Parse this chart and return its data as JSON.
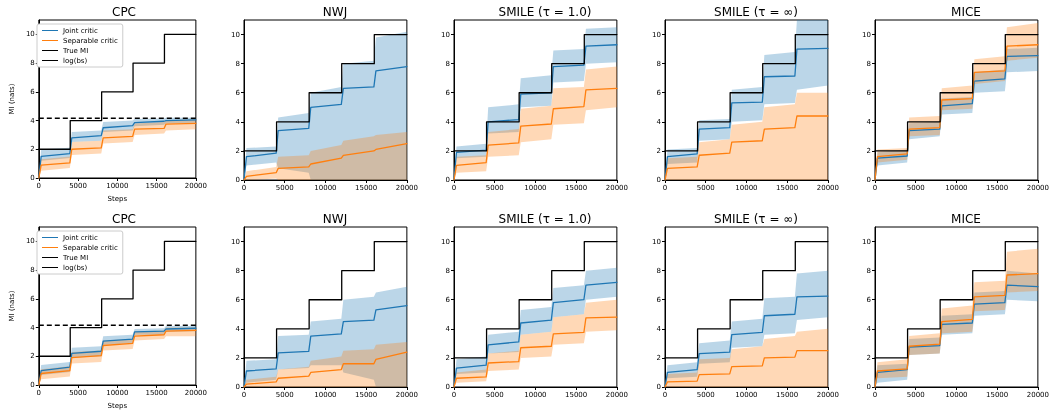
{
  "chart_data": [
    {
      "type": "line",
      "title": "CPC",
      "xlabel": "Steps",
      "ylabel": "MI (nats)",
      "legend": "top left",
      "xlim": [
        0,
        20000
      ],
      "xticks": [
        0,
        5000,
        10000,
        15000,
        20000
      ],
      "ylim": [
        0,
        11
      ],
      "yticks": [
        0,
        2,
        4,
        6,
        8,
        10
      ],
      "x": [
        0,
        300,
        3950,
        4200,
        7950,
        8200,
        11950,
        12200,
        15950,
        16200,
        20000
      ],
      "series": [
        {
          "name": "Joint critic",
          "color": "#1f77b4",
          "values": [
            0,
            1.5,
            1.7,
            2.8,
            2.95,
            3.5,
            3.65,
            3.85,
            3.95,
            4.0,
            4.05
          ],
          "lower": [
            0,
            1.2,
            1.4,
            2.5,
            2.6,
            3.2,
            3.3,
            3.6,
            3.7,
            3.8,
            3.85
          ],
          "upper": [
            0,
            2.0,
            2.1,
            3.2,
            3.3,
            3.9,
            4.0,
            4.1,
            4.15,
            4.2,
            4.2
          ]
        },
        {
          "name": "Separable critic",
          "color": "#ff7f0e",
          "values": [
            0,
            0.9,
            1.05,
            2.0,
            2.1,
            2.8,
            2.9,
            3.4,
            3.45,
            3.75,
            3.8
          ],
          "lower": [
            0,
            0.5,
            0.7,
            1.6,
            1.7,
            2.4,
            2.5,
            3.0,
            3.1,
            3.3,
            3.4
          ],
          "upper": [
            0,
            1.3,
            1.5,
            2.5,
            2.6,
            3.3,
            3.4,
            3.8,
            3.9,
            4.0,
            4.1
          ]
        },
        {
          "name": "True MI",
          "type": "step",
          "color": "#000000",
          "x": [
            0,
            4000,
            8000,
            12000,
            16000,
            20000
          ],
          "values": [
            2,
            4,
            6,
            8,
            10,
            10
          ]
        }
      ],
      "ref_lines": [
        {
          "axis": "y",
          "value": 4.16,
          "label": "log(bs)",
          "color": "#000000",
          "line_style": "dashed"
        }
      ]
    },
    {
      "type": "line",
      "title": "NWJ",
      "xlim": [
        0,
        20000
      ],
      "xticks": [
        0,
        5000,
        10000,
        15000,
        20000
      ],
      "ylim": [
        0,
        11
      ],
      "yticks": [
        0,
        2,
        4,
        6,
        8,
        10
      ],
      "x": [
        0,
        300,
        3950,
        4200,
        7950,
        8200,
        11950,
        12200,
        15950,
        16200,
        20000
      ],
      "series": [
        {
          "color": "#1f77b4",
          "values": [
            0,
            1.6,
            1.85,
            3.4,
            3.55,
            5.0,
            5.2,
            6.3,
            6.4,
            7.5,
            7.8
          ],
          "lower": [
            0,
            1.0,
            1.2,
            0.8,
            0.5,
            0,
            0,
            0,
            0,
            0,
            0
          ],
          "upper": [
            0,
            2.2,
            2.3,
            4.3,
            4.6,
            6.0,
            6.4,
            8.0,
            8.2,
            9.8,
            10.2
          ]
        },
        {
          "color": "#ff7f0e",
          "values": [
            0,
            0.25,
            0.5,
            0.8,
            0.9,
            1.1,
            1.5,
            1.7,
            2.0,
            2.1,
            2.5
          ],
          "lower": [
            0,
            0,
            0.1,
            0,
            0,
            0,
            0,
            0,
            0,
            0,
            0
          ],
          "upper": [
            0,
            0.6,
            0.9,
            1.6,
            1.7,
            2.0,
            2.4,
            2.7,
            3.0,
            3.1,
            3.3
          ]
        },
        {
          "type": "step",
          "color": "#000000",
          "x": [
            0,
            4000,
            8000,
            12000,
            16000,
            20000
          ],
          "values": [
            2,
            4,
            6,
            8,
            10,
            10
          ]
        }
      ]
    },
    {
      "type": "line",
      "title": "SMILE (τ = 1.0)",
      "xlim": [
        0,
        20000
      ],
      "xticks": [
        0,
        5000,
        10000,
        15000,
        20000
      ],
      "ylim": [
        0,
        11
      ],
      "yticks": [
        0,
        2,
        4,
        6,
        8,
        10
      ],
      "x": [
        0,
        300,
        3950,
        4200,
        7950,
        8200,
        11950,
        12200,
        15950,
        16200,
        20000
      ],
      "series": [
        {
          "color": "#1f77b4",
          "values": [
            0,
            1.9,
            2.05,
            4.0,
            4.15,
            5.9,
            6.0,
            7.8,
            7.9,
            9.2,
            9.3
          ],
          "lower": [
            0,
            1.5,
            1.6,
            3.2,
            3.3,
            5.0,
            5.1,
            6.7,
            6.8,
            8.0,
            8.1
          ],
          "upper": [
            0,
            2.3,
            2.5,
            5.0,
            5.2,
            7.0,
            7.2,
            8.9,
            9.0,
            10.4,
            10.5
          ]
        },
        {
          "color": "#ff7f0e",
          "values": [
            0,
            1.0,
            1.2,
            2.4,
            2.55,
            3.7,
            3.85,
            4.9,
            5.05,
            6.2,
            6.3
          ],
          "lower": [
            0,
            0.5,
            0.6,
            1.6,
            1.7,
            2.6,
            2.8,
            3.8,
            3.9,
            4.8,
            5.0
          ],
          "upper": [
            0,
            1.6,
            1.7,
            3.3,
            3.5,
            4.9,
            5.1,
            6.3,
            6.4,
            7.6,
            7.8
          ]
        },
        {
          "type": "step",
          "color": "#000000",
          "x": [
            0,
            4000,
            8000,
            12000,
            16000,
            20000
          ],
          "values": [
            2,
            4,
            6,
            8,
            10,
            10
          ]
        }
      ]
    },
    {
      "type": "line",
      "title": "SMILE (τ = ∞)",
      "xlim": [
        0,
        20000
      ],
      "xticks": [
        0,
        5000,
        10000,
        15000,
        20000
      ],
      "ylim": [
        0,
        11
      ],
      "yticks": [
        0,
        2,
        4,
        6,
        8,
        10
      ],
      "x": [
        0,
        300,
        3950,
        4200,
        7950,
        8200,
        11950,
        12200,
        15950,
        16200,
        20000
      ],
      "series": [
        {
          "color": "#1f77b4",
          "values": [
            0,
            1.6,
            1.8,
            3.5,
            3.6,
            5.3,
            5.35,
            7.1,
            7.15,
            9.0,
            9.05
          ],
          "lower": [
            0,
            1.1,
            1.2,
            2.7,
            2.8,
            4.0,
            4.1,
            5.2,
            5.3,
            6.2,
            6.5
          ],
          "upper": [
            0,
            2.1,
            2.2,
            4.1,
            4.2,
            6.2,
            6.4,
            8.6,
            8.8,
            11,
            11
          ]
        },
        {
          "color": "#ff7f0e",
          "values": [
            0,
            0.8,
            0.9,
            1.7,
            1.85,
            2.6,
            2.7,
            3.5,
            3.6,
            4.4,
            4.4
          ],
          "lower": [
            0,
            0,
            0,
            0,
            0,
            0,
            0,
            0,
            0,
            0,
            0
          ],
          "upper": [
            0,
            1.5,
            1.6,
            2.6,
            2.8,
            3.8,
            4.0,
            5.0,
            5.2,
            6.0,
            6.0
          ]
        },
        {
          "type": "step",
          "color": "#000000",
          "x": [
            0,
            4000,
            8000,
            12000,
            16000,
            20000
          ],
          "values": [
            2,
            4,
            6,
            8,
            10,
            10
          ]
        }
      ]
    },
    {
      "type": "line",
      "title": "MICE",
      "xlim": [
        0,
        20000
      ],
      "xticks": [
        0,
        5000,
        10000,
        15000,
        20000
      ],
      "ylim": [
        0,
        11
      ],
      "yticks": [
        0,
        2,
        4,
        6,
        8,
        10
      ],
      "x": [
        0,
        300,
        3950,
        4200,
        7950,
        8200,
        11950,
        12200,
        15950,
        16200,
        20000
      ],
      "series": [
        {
          "color": "#1f77b4",
          "values": [
            0,
            1.5,
            1.65,
            3.4,
            3.5,
            5.1,
            5.25,
            6.8,
            6.95,
            8.5,
            8.55
          ],
          "lower": [
            0,
            1.0,
            1.2,
            2.8,
            3.0,
            4.5,
            4.6,
            6.0,
            6.1,
            7.4,
            7.5
          ],
          "upper": [
            0,
            1.9,
            2.1,
            3.9,
            4.0,
            5.6,
            5.7,
            7.4,
            7.6,
            9.0,
            9.1
          ]
        },
        {
          "color": "#ff7f0e",
          "values": [
            0,
            1.6,
            1.8,
            3.5,
            3.6,
            5.5,
            5.6,
            7.4,
            7.5,
            9.2,
            9.3
          ],
          "lower": [
            0,
            1.2,
            1.4,
            3.0,
            3.1,
            4.8,
            4.9,
            6.6,
            6.8,
            8.2,
            8.4
          ],
          "upper": [
            0,
            2.1,
            2.2,
            4.3,
            4.4,
            6.3,
            6.5,
            8.3,
            8.5,
            10.5,
            10.8
          ]
        },
        {
          "type": "step",
          "color": "#000000",
          "x": [
            0,
            4000,
            8000,
            12000,
            16000,
            20000
          ],
          "values": [
            2,
            4,
            6,
            8,
            10,
            10
          ]
        }
      ]
    },
    {
      "type": "line",
      "title": "CPC",
      "xlabel": "Steps",
      "ylabel": "MI (nats)",
      "legend": "top left",
      "xlim": [
        0,
        20000
      ],
      "xticks": [
        0,
        5000,
        10000,
        15000,
        20000
      ],
      "ylim": [
        0,
        11
      ],
      "yticks": [
        0,
        2,
        4,
        6,
        8,
        10
      ],
      "x": [
        0,
        300,
        3950,
        4200,
        7950,
        8200,
        11950,
        12200,
        15950,
        16200,
        20000
      ],
      "series": [
        {
          "name": "Joint critic",
          "color": "#1f77b4",
          "values": [
            0,
            1.0,
            1.25,
            2.2,
            2.35,
            3.05,
            3.2,
            3.7,
            3.75,
            3.9,
            3.95
          ],
          "lower": [
            0,
            0.7,
            0.9,
            1.9,
            2.0,
            2.8,
            2.9,
            3.5,
            3.5,
            3.7,
            3.75
          ],
          "upper": [
            0,
            1.4,
            1.6,
            2.6,
            2.7,
            3.4,
            3.5,
            3.9,
            3.95,
            4.1,
            4.1
          ]
        },
        {
          "name": "Separable critic",
          "color": "#ff7f0e",
          "values": [
            0,
            0.8,
            1.0,
            1.9,
            2.05,
            2.75,
            2.9,
            3.4,
            3.5,
            3.75,
            3.8
          ],
          "lower": [
            0,
            0.4,
            0.6,
            1.5,
            1.6,
            2.4,
            2.5,
            3.1,
            3.2,
            3.4,
            3.4
          ],
          "upper": [
            0,
            1.1,
            1.3,
            2.3,
            2.4,
            3.1,
            3.2,
            3.7,
            3.8,
            4.0,
            4.0
          ]
        },
        {
          "name": "True MI",
          "type": "step",
          "color": "#000000",
          "x": [
            0,
            4000,
            8000,
            12000,
            16000,
            20000
          ],
          "values": [
            2,
            4,
            6,
            8,
            10,
            10
          ]
        }
      ],
      "ref_lines": [
        {
          "axis": "y",
          "value": 4.16,
          "label": "log(bs)",
          "color": "#000000",
          "line_style": "dashed"
        }
      ]
    },
    {
      "type": "line",
      "title": "NWJ",
      "xlim": [
        0,
        20000
      ],
      "xticks": [
        0,
        5000,
        10000,
        15000,
        20000
      ],
      "ylim": [
        0,
        11
      ],
      "yticks": [
        0,
        2,
        4,
        6,
        8,
        10
      ],
      "x": [
        0,
        300,
        3950,
        4200,
        7950,
        8200,
        11950,
        12200,
        15950,
        16200,
        20000
      ],
      "series": [
        {
          "color": "#1f77b4",
          "values": [
            0,
            1.1,
            1.25,
            2.35,
            2.45,
            3.5,
            3.65,
            4.5,
            4.6,
            5.3,
            5.6
          ],
          "lower": [
            0,
            0.3,
            0.5,
            1.2,
            1.3,
            1.5,
            1.5,
            1.0,
            0.5,
            0,
            0
          ],
          "upper": [
            0,
            1.8,
            1.9,
            3.5,
            3.6,
            4.5,
            4.7,
            6.0,
            6.2,
            6.5,
            6.9
          ]
        },
        {
          "color": "#ff7f0e",
          "values": [
            0,
            0.2,
            0.35,
            0.6,
            0.75,
            1.0,
            1.2,
            1.6,
            1.6,
            1.9,
            2.4
          ],
          "lower": [
            0,
            0,
            0,
            0,
            0,
            0,
            0,
            0,
            0,
            0,
            0
          ],
          "upper": [
            0,
            0.5,
            0.7,
            1.2,
            1.4,
            1.8,
            2.1,
            2.5,
            2.6,
            2.9,
            3.1
          ]
        },
        {
          "type": "step",
          "color": "#000000",
          "x": [
            0,
            4000,
            8000,
            12000,
            16000,
            20000
          ],
          "values": [
            2,
            4,
            6,
            8,
            10,
            10
          ]
        }
      ]
    },
    {
      "type": "line",
      "title": "SMILE (τ = 1.0)",
      "xlim": [
        0,
        20000
      ],
      "xticks": [
        0,
        5000,
        10000,
        15000,
        20000
      ],
      "ylim": [
        0,
        11
      ],
      "yticks": [
        0,
        2,
        4,
        6,
        8,
        10
      ],
      "x": [
        0,
        300,
        3950,
        4200,
        7950,
        8200,
        11950,
        12200,
        15950,
        16200,
        20000
      ],
      "series": [
        {
          "color": "#1f77b4",
          "values": [
            0,
            1.3,
            1.5,
            2.9,
            3.1,
            4.4,
            4.6,
            5.8,
            6.0,
            7.0,
            7.2
          ],
          "lower": [
            0,
            0.9,
            1.0,
            2.3,
            2.4,
            3.6,
            3.8,
            4.8,
            5.0,
            6.0,
            6.2
          ],
          "upper": [
            0,
            1.9,
            2.1,
            3.6,
            3.8,
            5.3,
            5.5,
            6.8,
            7.0,
            8.0,
            8.2
          ]
        },
        {
          "color": "#ff7f0e",
          "values": [
            0,
            0.6,
            0.7,
            1.65,
            1.75,
            2.7,
            2.8,
            3.65,
            3.75,
            4.75,
            4.8
          ],
          "lower": [
            0,
            0.3,
            0.4,
            1.1,
            1.2,
            2.0,
            2.1,
            2.9,
            3.0,
            3.8,
            3.9
          ],
          "upper": [
            0,
            1.0,
            1.2,
            2.3,
            2.5,
            3.6,
            3.8,
            4.8,
            5.0,
            5.8,
            6.0
          ]
        },
        {
          "type": "step",
          "color": "#000000",
          "x": [
            0,
            4000,
            8000,
            12000,
            16000,
            20000
          ],
          "values": [
            2,
            4,
            6,
            8,
            10,
            10
          ]
        }
      ]
    },
    {
      "type": "line",
      "title": "SMILE (τ = ∞)",
      "xlim": [
        0,
        20000
      ],
      "xticks": [
        0,
        5000,
        10000,
        15000,
        20000
      ],
      "ylim": [
        0,
        11
      ],
      "yticks": [
        0,
        2,
        4,
        6,
        8,
        10
      ],
      "x": [
        0,
        300,
        3950,
        4200,
        7950,
        8200,
        11950,
        12200,
        15950,
        16200,
        20000
      ],
      "series": [
        {
          "color": "#1f77b4",
          "values": [
            0,
            1.0,
            1.2,
            2.3,
            2.4,
            3.6,
            3.75,
            4.9,
            5.0,
            6.2,
            6.25
          ],
          "lower": [
            0,
            0.6,
            0.7,
            1.6,
            1.7,
            2.7,
            2.8,
            3.6,
            3.7,
            4.6,
            4.8
          ],
          "upper": [
            0,
            1.5,
            1.7,
            3.0,
            3.2,
            4.5,
            4.7,
            6.1,
            6.2,
            7.8,
            8.0
          ]
        },
        {
          "color": "#ff7f0e",
          "values": [
            0,
            0.35,
            0.4,
            0.85,
            0.9,
            1.4,
            1.45,
            2.0,
            2.05,
            2.5,
            2.5
          ],
          "lower": [
            0,
            0,
            0,
            0,
            0,
            0,
            0,
            0,
            0,
            0,
            0
          ],
          "upper": [
            0,
            0.9,
            1.0,
            1.9,
            2.0,
            2.6,
            2.8,
            3.3,
            3.5,
            3.8,
            4.0
          ]
        },
        {
          "type": "step",
          "color": "#000000",
          "x": [
            0,
            4000,
            8000,
            12000,
            16000,
            20000
          ],
          "values": [
            2,
            4,
            6,
            8,
            10,
            10
          ]
        }
      ]
    },
    {
      "type": "line",
      "title": "MICE",
      "xlim": [
        0,
        20000
      ],
      "xticks": [
        0,
        5000,
        10000,
        15000,
        20000
      ],
      "ylim": [
        0,
        11
      ],
      "yticks": [
        0,
        2,
        4,
        6,
        8,
        10
      ],
      "x": [
        0,
        300,
        3950,
        4200,
        7950,
        8200,
        11950,
        12200,
        15950,
        16200,
        20000
      ],
      "series": [
        {
          "color": "#1f77b4",
          "values": [
            0,
            1.0,
            1.2,
            2.75,
            2.85,
            4.3,
            4.4,
            5.7,
            5.8,
            7.0,
            6.9
          ],
          "lower": [
            0,
            0.3,
            0.5,
            2.2,
            2.3,
            3.6,
            3.7,
            4.9,
            5.0,
            6.0,
            5.9
          ],
          "upper": [
            0,
            1.5,
            1.6,
            3.3,
            3.4,
            4.9,
            5.0,
            6.5,
            6.6,
            8.0,
            7.8
          ]
        },
        {
          "color": "#ff7f0e",
          "values": [
            0,
            1.1,
            1.25,
            2.8,
            2.95,
            4.5,
            4.65,
            6.2,
            6.3,
            7.7,
            7.8
          ],
          "lower": [
            0,
            0.6,
            0.7,
            2.2,
            2.3,
            3.7,
            3.8,
            5.2,
            5.3,
            6.5,
            6.6
          ],
          "upper": [
            0,
            1.7,
            1.9,
            3.5,
            3.7,
            5.4,
            5.6,
            7.2,
            7.3,
            9.3,
            9.5
          ]
        },
        {
          "type": "step",
          "color": "#000000",
          "x": [
            0,
            4000,
            8000,
            12000,
            16000,
            20000
          ],
          "values": [
            2,
            4,
            6,
            8,
            10,
            10
          ]
        }
      ]
    }
  ]
}
